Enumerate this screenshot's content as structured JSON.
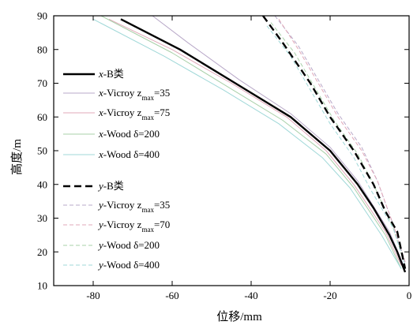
{
  "chart_data": {
    "type": "line",
    "xlabel": "位移/mm",
    "ylabel": "高度/m",
    "xlim": [
      -90,
      0
    ],
    "ylim": [
      10,
      90
    ],
    "xticks": [
      -80,
      -60,
      -40,
      -20,
      0
    ],
    "yticks": [
      10,
      20,
      30,
      40,
      50,
      60,
      70,
      80,
      90
    ],
    "xtick_labels": [
      "-80",
      "-60",
      "-40",
      "-20",
      "0"
    ],
    "ytick_labels": [
      "10",
      "20",
      "30",
      "40",
      "50",
      "60",
      "70",
      "80",
      "90"
    ],
    "grid": false,
    "legend": "left",
    "series": [
      {
        "name": "x-B类",
        "color": "#000000",
        "style": "solid",
        "width": 2.4,
        "points": [
          [
            -73,
            89
          ],
          [
            -58,
            80
          ],
          [
            -44,
            70
          ],
          [
            -30,
            60
          ],
          [
            -20,
            50
          ],
          [
            -13,
            40
          ],
          [
            -9,
            33
          ],
          [
            -5,
            25
          ],
          [
            -3,
            20
          ],
          [
            -1,
            14
          ]
        ]
      },
      {
        "name": "x-Vicroy z_max=35",
        "color": "#b8a8c8",
        "style": "solid",
        "width": 1,
        "points": [
          [
            -65,
            90
          ],
          [
            -56,
            82
          ],
          [
            -43,
            71
          ],
          [
            -30,
            61
          ],
          [
            -20,
            51
          ],
          [
            -13,
            41
          ],
          [
            -5,
            26
          ],
          [
            -1,
            15
          ]
        ]
      },
      {
        "name": "x-Vicroy z_max=75",
        "color": "#e0a8b8",
        "style": "solid",
        "width": 1,
        "points": [
          [
            -76,
            89
          ],
          [
            -60,
            80
          ],
          [
            -45,
            70
          ],
          [
            -31,
            60
          ],
          [
            -21,
            50
          ],
          [
            -14,
            40
          ],
          [
            -6,
            26
          ],
          [
            -2,
            16
          ]
        ]
      },
      {
        "name": "x-Wood δ=200",
        "color": "#a8d0a8",
        "style": "solid",
        "width": 1,
        "points": [
          [
            -78,
            90
          ],
          [
            -60,
            79
          ],
          [
            -46,
            69
          ],
          [
            -32,
            59
          ],
          [
            -21,
            49
          ],
          [
            -14,
            39
          ],
          [
            -6,
            25
          ],
          [
            -2,
            15
          ]
        ]
      },
      {
        "name": "x-Wood δ=400",
        "color": "#a0d8d8",
        "style": "solid",
        "width": 1,
        "points": [
          [
            -80,
            89
          ],
          [
            -62,
            78
          ],
          [
            -47,
            68
          ],
          [
            -33,
            58
          ],
          [
            -22,
            48
          ],
          [
            -15,
            39
          ],
          [
            -7,
            25
          ],
          [
            -2,
            15
          ]
        ]
      },
      {
        "name": "y-B类",
        "color": "#000000",
        "style": "dashed",
        "width": 2.4,
        "points": [
          [
            -37,
            90
          ],
          [
            -32,
            82
          ],
          [
            -25,
            70
          ],
          [
            -20,
            60
          ],
          [
            -14,
            50
          ],
          [
            -9,
            40
          ],
          [
            -6,
            32
          ],
          [
            -3,
            26
          ],
          [
            -1,
            15
          ]
        ]
      },
      {
        "name": "y-Vicroy z_max=35",
        "color": "#b8a8c8",
        "style": "dashed",
        "width": 1,
        "points": [
          [
            -34,
            90
          ],
          [
            -28,
            81
          ],
          [
            -23,
            71
          ],
          [
            -18,
            61
          ],
          [
            -12,
            51
          ],
          [
            -8,
            41
          ],
          [
            -4,
            28
          ],
          [
            -1,
            17
          ]
        ]
      },
      {
        "name": "y-Vicroy z_max=70",
        "color": "#e0a8b8",
        "style": "dashed",
        "width": 1,
        "points": [
          [
            -33,
            89
          ],
          [
            -28,
            80
          ],
          [
            -23,
            70
          ],
          [
            -18,
            60
          ],
          [
            -12,
            50
          ],
          [
            -8,
            41
          ],
          [
            -4,
            28
          ],
          [
            -1,
            17
          ]
        ]
      },
      {
        "name": "y-Wood δ=200",
        "color": "#a8d0a8",
        "style": "dashed",
        "width": 1,
        "points": [
          [
            -35,
            88
          ],
          [
            -29,
            79
          ],
          [
            -24,
            69
          ],
          [
            -19,
            59
          ],
          [
            -13,
            49
          ],
          [
            -9,
            40
          ],
          [
            -4,
            27
          ],
          [
            -1,
            16
          ]
        ]
      },
      {
        "name": "y-Wood δ=400",
        "color": "#a0d8d8",
        "style": "dashed",
        "width": 1,
        "points": [
          [
            -36,
            87
          ],
          [
            -30,
            78
          ],
          [
            -25,
            68
          ],
          [
            -20,
            58
          ],
          [
            -14,
            48
          ],
          [
            -10,
            39
          ],
          [
            -4,
            27
          ],
          [
            -1,
            16
          ]
        ]
      }
    ],
    "legend_entries": [
      {
        "prefix": "x",
        "text": "-B类",
        "sub": "",
        "suffix": ""
      },
      {
        "prefix": "x",
        "text": "-Vicroy z",
        "sub": "max",
        "suffix": "=35"
      },
      {
        "prefix": "x",
        "text": "-Vicroy z",
        "sub": "max",
        "suffix": "=75"
      },
      {
        "prefix": "x",
        "text": "-Wood δ=200",
        "sub": "",
        "suffix": ""
      },
      {
        "prefix": "x",
        "text": "-Wood δ=400",
        "sub": "",
        "suffix": ""
      },
      {
        "prefix": "y",
        "text": "-B类",
        "sub": "",
        "suffix": ""
      },
      {
        "prefix": "y",
        "text": "-Vicroy z",
        "sub": "max",
        "suffix": "=35"
      },
      {
        "prefix": "y",
        "text": "-Vicroy z",
        "sub": "max",
        "suffix": "=70"
      },
      {
        "prefix": "y",
        "text": "-Wood δ=200",
        "sub": "",
        "suffix": ""
      },
      {
        "prefix": "y",
        "text": "-Wood δ=400",
        "sub": "",
        "suffix": ""
      }
    ]
  }
}
